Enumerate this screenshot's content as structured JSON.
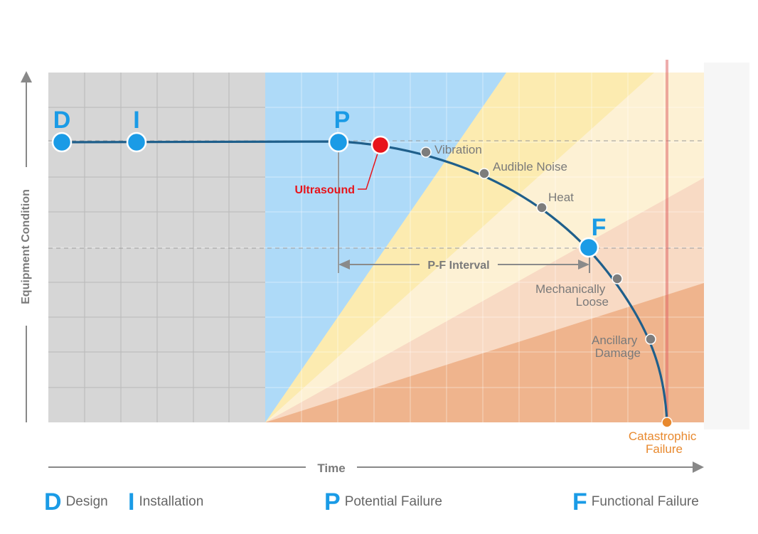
{
  "axes": {
    "y_label": "Equipment Condition",
    "x_label": "Time"
  },
  "stages": [
    {
      "letter": "D",
      "name": "Design"
    },
    {
      "letter": "I",
      "name": "Installation"
    },
    {
      "letter": "P",
      "name": "Potential Failure"
    },
    {
      "letter": "F",
      "name": "Functional Failure"
    }
  ],
  "indicators": [
    {
      "label": "Ultrasound",
      "color": "#e8141b"
    },
    {
      "label": "Vibration",
      "color": "#888888"
    },
    {
      "label": "Audible Noise",
      "color": "#888888"
    },
    {
      "label": "Heat",
      "color": "#888888"
    },
    {
      "label": "Mechanically Loose",
      "color": "#888888"
    },
    {
      "label": "Ancillary Damage",
      "color": "#888888"
    },
    {
      "label": "Catastrophic Failure",
      "color": "#e8892e"
    }
  ],
  "interval": {
    "label": "P-F Interval"
  },
  "colors": {
    "accent": "#1a9be6",
    "curve": "#1f5f8b",
    "design_zone": "#d6d6d6",
    "monitor_zone": "#a9d8f7",
    "wedge_yellow": "#fdeeb3",
    "wedge_light": "#fdf3d6",
    "wedge_peach": "#f8dcc6",
    "wedge_orange": "#efb58f",
    "failure_line": "#e06a6a"
  }
}
